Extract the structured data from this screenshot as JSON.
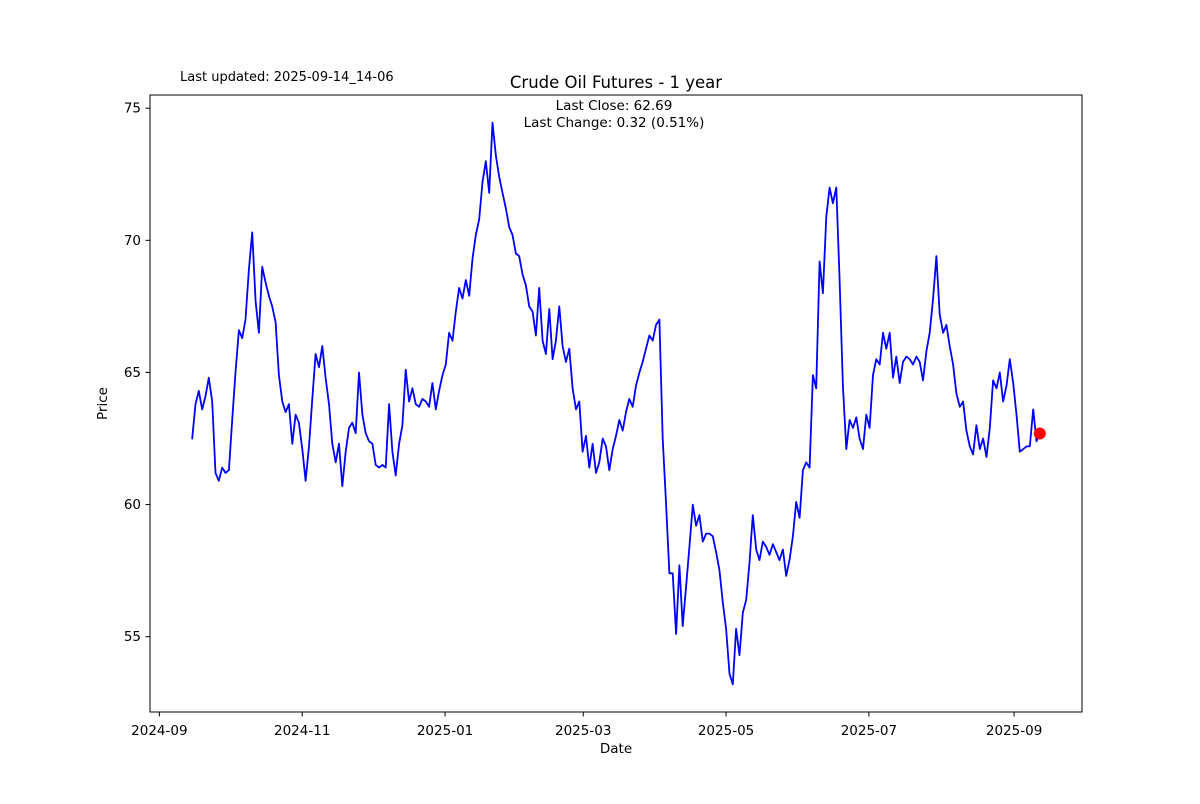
{
  "header": {
    "last_updated": "Last updated: 2025-09-14_14-06"
  },
  "chart_data": {
    "type": "line",
    "title": "Crude Oil Futures - 1 year",
    "xlabel": "Date",
    "ylabel": "Price",
    "annotation": [
      "Last Close: 62.69",
      "Last Change: 0.32 (0.51%)"
    ],
    "last_close": 62.69,
    "last_change": 0.32,
    "last_change_pct": 0.51,
    "line_color": "#0000ff",
    "marker_color": "#ff0000",
    "ylim": [
      52.15,
      75.5
    ],
    "yticks": [
      75,
      70,
      65,
      60,
      55
    ],
    "x_span_days": 362,
    "x_margin_days": 18,
    "xticks": [
      {
        "label": "2024-09",
        "day": -14
      },
      {
        "label": "2024-11",
        "day": 47
      },
      {
        "label": "2025-01",
        "day": 108
      },
      {
        "label": "2025-03",
        "day": 167
      },
      {
        "label": "2025-05",
        "day": 228
      },
      {
        "label": "2025-07",
        "day": 289
      },
      {
        "label": "2025-09",
        "day": 351
      }
    ],
    "series": [
      {
        "name": "price",
        "values": [
          62.5,
          63.8,
          64.3,
          63.6,
          64.1,
          64.8,
          63.9,
          61.2,
          60.9,
          61.4,
          61.2,
          61.3,
          63.2,
          65.0,
          66.6,
          66.3,
          67.0,
          68.9,
          70.3,
          67.7,
          66.5,
          69.0,
          68.4,
          67.9,
          67.5,
          66.9,
          64.9,
          63.9,
          63.5,
          63.8,
          62.3,
          63.4,
          63.1,
          62.1,
          60.9,
          62.2,
          64.0,
          65.7,
          65.2,
          66.0,
          64.8,
          63.8,
          62.3,
          61.6,
          62.3,
          60.7,
          62.0,
          62.9,
          63.1,
          62.7,
          65.0,
          63.4,
          62.7,
          62.4,
          62.3,
          61.5,
          61.4,
          61.5,
          61.4,
          63.8,
          62.0,
          61.1,
          62.3,
          63.0,
          65.1,
          63.9,
          64.4,
          63.8,
          63.7,
          64.0,
          63.9,
          63.7,
          64.6,
          63.6,
          64.3,
          64.9,
          65.3,
          66.5,
          66.2,
          67.3,
          68.2,
          67.8,
          68.5,
          67.9,
          69.3,
          70.2,
          70.8,
          72.2,
          73.0,
          71.8,
          74.45,
          73.2,
          72.4,
          71.8,
          71.2,
          70.5,
          70.2,
          69.5,
          69.4,
          68.7,
          68.3,
          67.5,
          67.3,
          66.4,
          68.2,
          66.2,
          65.7,
          67.4,
          65.5,
          66.2,
          67.5,
          66.0,
          65.4,
          65.9,
          64.4,
          63.6,
          63.9,
          62.0,
          62.6,
          61.4,
          62.3,
          61.2,
          61.6,
          62.5,
          62.2,
          61.3,
          62.1,
          62.6,
          63.2,
          62.8,
          63.5,
          64.0,
          63.7,
          64.5,
          65.0,
          65.4,
          65.9,
          66.4,
          66.2,
          66.8,
          67.0,
          62.5,
          60.0,
          57.4,
          57.4,
          55.1,
          57.7,
          55.4,
          56.9,
          58.4,
          60.0,
          59.2,
          59.6,
          58.6,
          58.9,
          58.9,
          58.8,
          58.2,
          57.5,
          56.3,
          55.3,
          53.6,
          53.2,
          55.3,
          54.3,
          55.9,
          56.4,
          57.8,
          59.6,
          58.3,
          57.9,
          58.6,
          58.4,
          58.1,
          58.5,
          58.2,
          57.9,
          58.3,
          57.3,
          57.9,
          58.8,
          60.1,
          59.5,
          61.3,
          61.6,
          61.4,
          64.9,
          64.4,
          69.2,
          68.0,
          70.9,
          72.0,
          71.4,
          72.0,
          68.5,
          64.5,
          62.1,
          63.2,
          62.9,
          63.3,
          62.5,
          62.1,
          63.4,
          62.9,
          64.9,
          65.5,
          65.3,
          66.5,
          65.9,
          66.5,
          64.8,
          65.6,
          64.6,
          65.4,
          65.6,
          65.5,
          65.3,
          65.6,
          65.4,
          64.7,
          65.8,
          66.5,
          67.8,
          69.4,
          67.2,
          66.5,
          66.8,
          66.0,
          65.3,
          64.2,
          63.7,
          63.9,
          62.8,
          62.2,
          61.9,
          63.0,
          62.1,
          62.5,
          61.8,
          62.9,
          64.7,
          64.4,
          65.0,
          63.9,
          64.5,
          65.5,
          64.6,
          63.4,
          62.0,
          62.1,
          62.2,
          62.2,
          63.6,
          62.4,
          62.69
        ]
      }
    ]
  }
}
